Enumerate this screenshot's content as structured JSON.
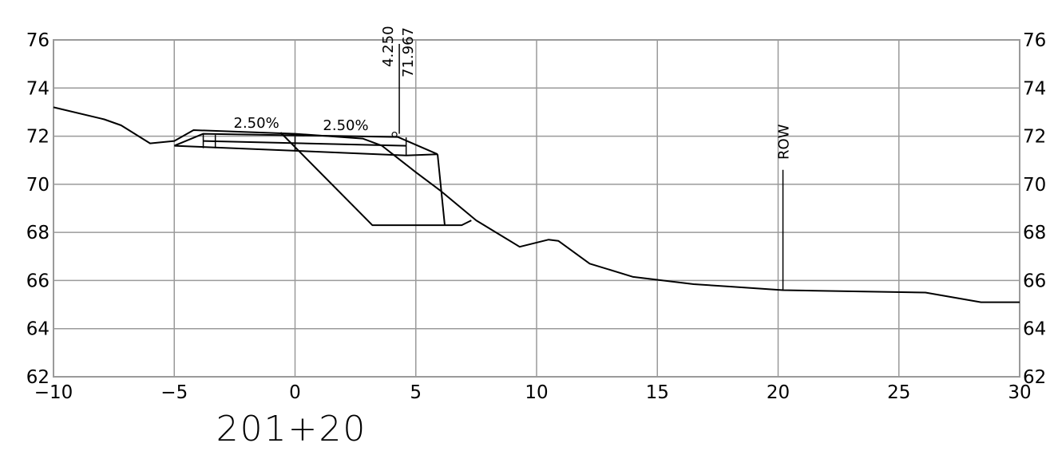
{
  "chart_data": {
    "type": "line",
    "title": "",
    "xlabel": "",
    "ylabel": "",
    "station_label": "201+20",
    "xlim": [
      -10,
      30
    ],
    "ylim": [
      62,
      76
    ],
    "x_ticks": [
      -10,
      -5,
      0,
      5,
      10,
      15,
      20,
      25,
      30
    ],
    "x_tick_labels": [
      "−10",
      "−5",
      "0",
      "5",
      "10",
      "15",
      "20",
      "25",
      "30"
    ],
    "y_ticks": [
      62,
      64,
      66,
      68,
      70,
      72,
      74,
      76
    ],
    "y_tick_labels": [
      "62",
      "64",
      "66",
      "68",
      "70",
      "72",
      "74",
      "76"
    ],
    "grid": true,
    "colors": {
      "ground": "#999999",
      "design": "#000000",
      "grid": "#9a9a9a"
    },
    "series": [
      {
        "role": "existing-ground",
        "x": [
          -10,
          -7.9,
          -7.2,
          -6,
          -5.5,
          -5,
          -4.2,
          0,
          2.8,
          3.6,
          5,
          6,
          7.5,
          9.3,
          10.5,
          10.9,
          12.2,
          14,
          16.5,
          18,
          20.2,
          26.1,
          28.4,
          30
        ],
        "y": [
          73.2,
          72.7,
          72.45,
          71.7,
          71.75,
          71.8,
          72.25,
          72.1,
          71.9,
          71.6,
          70.5,
          69.75,
          68.5,
          67.4,
          67.7,
          67.65,
          66.7,
          66.15,
          65.85,
          65.75,
          65.6,
          65.5,
          65.1,
          65.1
        ]
      },
      {
        "role": "existing-ground-branch",
        "x": [
          -0.6,
          3.2,
          6.9,
          7.3
        ],
        "y": [
          72.15,
          68.3,
          68.3,
          68.5
        ]
      },
      {
        "role": "proposed-top",
        "x": [
          -5,
          -3.8,
          4.25,
          5.9
        ],
        "y": [
          71.6,
          72.1,
          71.967,
          71.25
        ]
      },
      {
        "role": "proposed-bottom",
        "x": [
          -5,
          4.6,
          5.9
        ],
        "y": [
          71.6,
          71.2,
          71.25
        ]
      },
      {
        "role": "proposed-middle",
        "x": [
          -3.8,
          4.6
        ],
        "y": [
          71.8,
          71.6
        ]
      },
      {
        "role": "fill-slope",
        "x": [
          5.9,
          6.2
        ],
        "y": [
          71.25,
          68.3
        ]
      }
    ],
    "dividers": [
      {
        "x": -3.8,
        "y1": 72.1,
        "y2": 71.5
      },
      {
        "x": -3.3,
        "y1": 72.05,
        "y2": 71.5
      },
      {
        "x": 0,
        "y1": 72.0,
        "y2": 71.4
      },
      {
        "x": 4.6,
        "y1": 71.95,
        "y2": 71.2
      }
    ],
    "annotations": [
      {
        "text": "2.50%",
        "x": -1.6,
        "y": 72.35
      },
      {
        "text": "2.50%",
        "x": 2.1,
        "y": 72.25
      }
    ],
    "callout": {
      "offset": "4.250",
      "elevation": "71.967",
      "x": 4.25,
      "y": 71.967
    },
    "row": {
      "label": "ROW",
      "x": 20.2,
      "y_top": 70.6,
      "y_bottom": 65.6
    }
  }
}
